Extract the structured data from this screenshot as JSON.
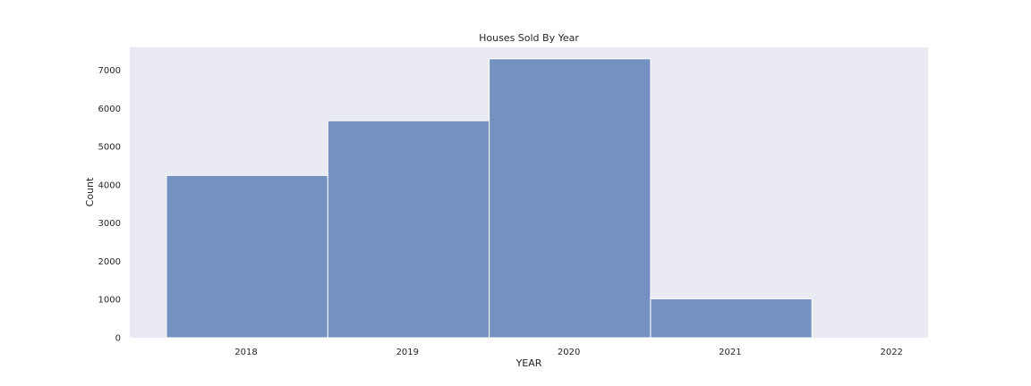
{
  "chart_data": {
    "type": "bar",
    "title": "Houses Sold By Year",
    "xlabel": "YEAR",
    "ylabel": "Count",
    "categories": [
      "2018",
      "2019",
      "2020",
      "2021",
      "2022"
    ],
    "values": [
      4250,
      5680,
      7300,
      1020,
      0
    ],
    "ylim": [
      0,
      7600
    ],
    "yticks": [
      0,
      1000,
      2000,
      3000,
      4000,
      5000,
      6000,
      7000
    ],
    "grid": false,
    "colors": {
      "bar": "#7591c2",
      "bar_edge": "#ffffff",
      "plot_background": "#eaeaf2"
    }
  }
}
